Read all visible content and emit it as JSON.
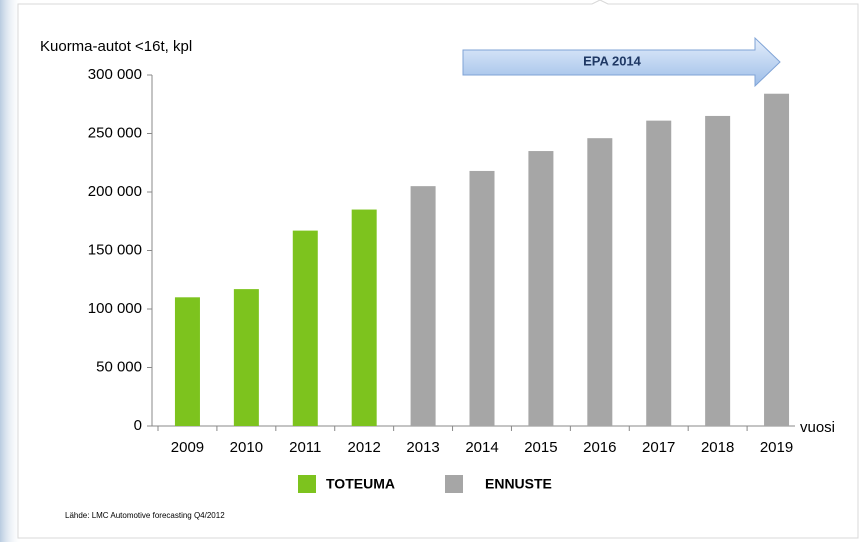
{
  "chart_data": {
    "type": "bar",
    "title": "Kuorma-autot <16t, kpl",
    "x_label": "vuosi",
    "annotation": "EPA 2014",
    "source": "Lähde: LMC Automotive forecasting Q4/2012",
    "categories": [
      "2009",
      "2010",
      "2011",
      "2012",
      "2013",
      "2014",
      "2015",
      "2016",
      "2017",
      "2018",
      "2019"
    ],
    "series": [
      {
        "name": "TOTEUMA",
        "color": "#7dc31e",
        "values": [
          110000,
          117000,
          167000,
          185000,
          null,
          null,
          null,
          null,
          null,
          null,
          null
        ]
      },
      {
        "name": "ENNUSTE",
        "color": "#a6a6a6",
        "values": [
          null,
          null,
          null,
          null,
          205000,
          218000,
          235000,
          246000,
          261000,
          265000,
          284000
        ]
      }
    ],
    "ylim": [
      0,
      300000
    ],
    "yticks": [
      0,
      {
        "value": 50000,
        "label": "50 000"
      },
      {
        "value": 100000,
        "label": "100 000"
      },
      {
        "value": 150000,
        "label": "150 000"
      },
      {
        "value": 200000,
        "label": "200 000"
      },
      {
        "value": 250000,
        "label": "250 000"
      },
      {
        "value": 300000,
        "label": "300 000"
      }
    ],
    "grid": false,
    "legend": "bottom"
  }
}
